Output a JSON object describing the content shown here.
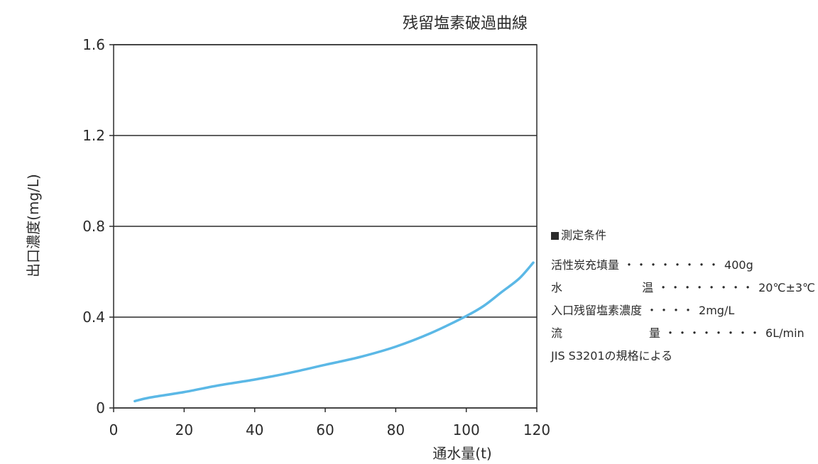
{
  "chart_data": {
    "type": "line",
    "title": "残留塩素破過曲線",
    "xlabel": "通水量(t)",
    "ylabel": "出口濃度(mg/L)",
    "xlim": [
      0,
      120
    ],
    "ylim": [
      0,
      1.6
    ],
    "xticks": [
      "0",
      "20",
      "40",
      "60",
      "80",
      "100",
      "120"
    ],
    "yticks": [
      "0",
      "0.4",
      "0.8",
      "1.2",
      "1.6"
    ],
    "grid": "horizontal",
    "series": [
      {
        "color": "#5bb8e6",
        "x": [
          6,
          10,
          20,
          30,
          40,
          50,
          60,
          70,
          80,
          90,
          100,
          105,
          110,
          115,
          119
        ],
        "y": [
          0.03,
          0.045,
          0.07,
          0.1,
          0.125,
          0.155,
          0.19,
          0.225,
          0.27,
          0.33,
          0.405,
          0.45,
          0.51,
          0.57,
          0.64
        ]
      }
    ]
  },
  "conditions": {
    "heading": "測定条件",
    "rows": [
      {
        "label": "活性炭充填量",
        "dots": "・・・・・・・・",
        "value": "400g"
      },
      {
        "label_chars": [
          "水",
          "温"
        ],
        "dots": "・・・・・・・・",
        "value": "20℃±3℃"
      },
      {
        "label": "入口残留塩素濃度",
        "dots": "・・・・",
        "value": "2mg/L"
      },
      {
        "label_chars": [
          "流",
          "量"
        ],
        "dots": "・・・・・・・・",
        "value": "6L/min"
      }
    ],
    "note": "JIS S3201の規格による"
  }
}
